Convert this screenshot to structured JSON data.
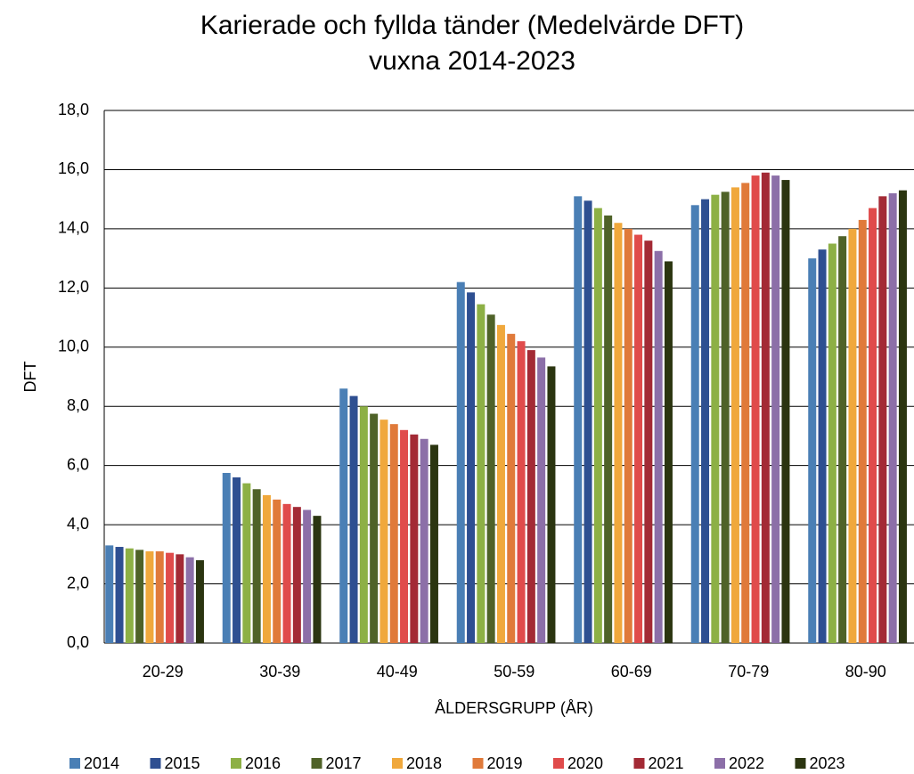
{
  "chart_data": {
    "type": "bar",
    "title": "Karierade och fyllda tänder (Medelvärde DFT)",
    "subtitle": "vuxna 2014-2023",
    "y_label": "DFT",
    "x_label": "ÅLDERSGRUPP (ÅR)",
    "categories": [
      "20-29",
      "30-39",
      "40-49",
      "50-59",
      "60-69",
      "70-79",
      "80-90"
    ],
    "series": [
      {
        "name": "2014",
        "color": "#4a7fb5",
        "values": [
          3.3,
          5.75,
          8.6,
          12.2,
          15.1,
          14.8,
          13.0
        ]
      },
      {
        "name": "2015",
        "color": "#2e4f91",
        "values": [
          3.25,
          5.6,
          8.35,
          11.85,
          14.95,
          15.0,
          13.3
        ]
      },
      {
        "name": "2016",
        "color": "#8db045",
        "values": [
          3.2,
          5.4,
          8.0,
          11.45,
          14.7,
          15.15,
          13.5
        ]
      },
      {
        "name": "2017",
        "color": "#4f6228",
        "values": [
          3.15,
          5.2,
          7.75,
          11.1,
          14.45,
          15.25,
          13.75
        ]
      },
      {
        "name": "2018",
        "color": "#f0a83c",
        "values": [
          3.1,
          5.0,
          7.55,
          10.75,
          14.2,
          15.4,
          14.0
        ]
      },
      {
        "name": "2019",
        "color": "#e07a3a",
        "values": [
          3.1,
          4.85,
          7.4,
          10.45,
          14.0,
          15.55,
          14.3
        ]
      },
      {
        "name": "2020",
        "color": "#e04b4b",
        "values": [
          3.05,
          4.7,
          7.2,
          10.2,
          13.8,
          15.8,
          14.7
        ]
      },
      {
        "name": "2021",
        "color": "#a32a35",
        "values": [
          3.0,
          4.6,
          7.05,
          9.9,
          13.6,
          15.9,
          15.1
        ]
      },
      {
        "name": "2022",
        "color": "#8c6fa8",
        "values": [
          2.9,
          4.5,
          6.9,
          9.65,
          13.25,
          15.8,
          15.2
        ]
      },
      {
        "name": "2023",
        "color": "#2b3510",
        "values": [
          2.8,
          4.3,
          6.7,
          9.35,
          12.9,
          15.65,
          15.3
        ]
      }
    ],
    "ylim": [
      0,
      18
    ],
    "yticks": [
      {
        "value": 0,
        "label": "0,0"
      },
      {
        "value": 2,
        "label": "2,0"
      },
      {
        "value": 4,
        "label": "4,0"
      },
      {
        "value": 6,
        "label": "6,0"
      },
      {
        "value": 8,
        "label": "8,0"
      },
      {
        "value": 10,
        "label": "10,0"
      },
      {
        "value": 12,
        "label": "12,0"
      },
      {
        "value": 14,
        "label": "14,0"
      },
      {
        "value": 16,
        "label": "16,0"
      },
      {
        "value": 18,
        "label": "18,0"
      }
    ],
    "grid": true,
    "legend": "bottom"
  }
}
